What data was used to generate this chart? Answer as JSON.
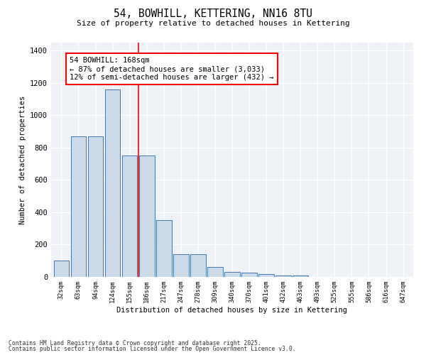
{
  "title1": "54, BOWHILL, KETTERING, NN16 8TU",
  "title2": "Size of property relative to detached houses in Kettering",
  "xlabel": "Distribution of detached houses by size in Kettering",
  "ylabel": "Number of detached properties",
  "categories": [
    "32sqm",
    "63sqm",
    "94sqm",
    "124sqm",
    "155sqm",
    "186sqm",
    "217sqm",
    "247sqm",
    "278sqm",
    "309sqm",
    "340sqm",
    "370sqm",
    "401sqm",
    "432sqm",
    "463sqm",
    "493sqm",
    "525sqm",
    "555sqm",
    "586sqm",
    "616sqm",
    "647sqm"
  ],
  "values": [
    100,
    870,
    870,
    1160,
    750,
    750,
    350,
    140,
    140,
    60,
    32,
    28,
    16,
    10,
    8,
    0,
    0,
    0,
    0,
    0,
    0
  ],
  "bar_color": "#ccd9e8",
  "bar_edge_color": "#4477aa",
  "vline_x": 4.5,
  "vline_color": "red",
  "annotation_text": "54 BOWHILL: 168sqm\n← 87% of detached houses are smaller (3,033)\n12% of semi-detached houses are larger (432) →",
  "ylim": [
    0,
    1450
  ],
  "yticks": [
    0,
    200,
    400,
    600,
    800,
    1000,
    1200,
    1400
  ],
  "bg_color": "#eef2f7",
  "footer1": "Contains HM Land Registry data © Crown copyright and database right 2025.",
  "footer2": "Contains public sector information licensed under the Open Government Licence v3.0."
}
